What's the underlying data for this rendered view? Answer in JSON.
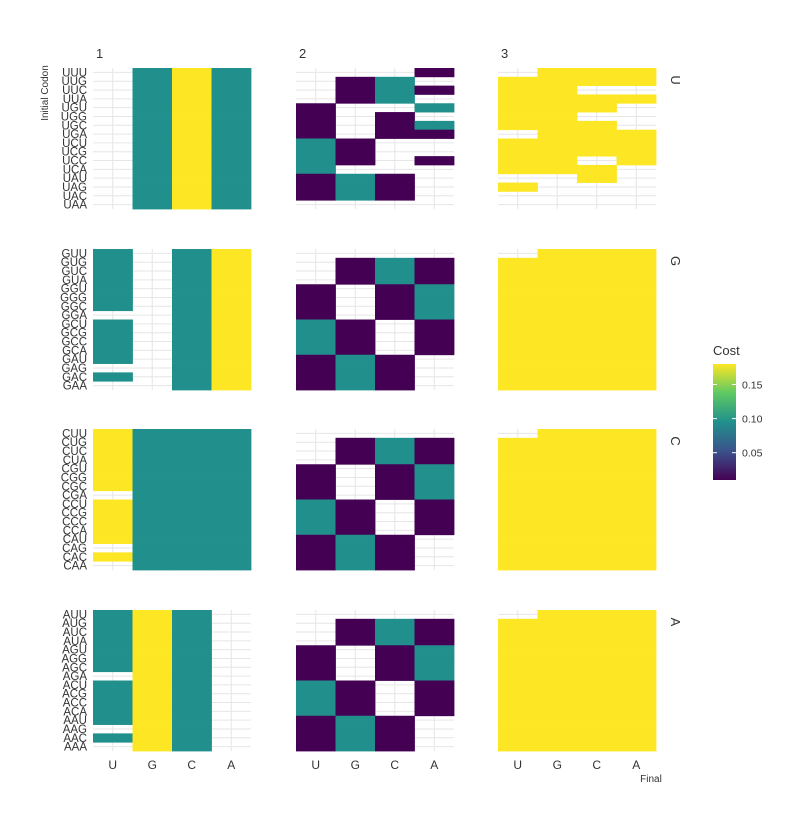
{
  "chart_data": {
    "type": "heatmap",
    "title": "",
    "xlabel": "Final",
    "ylabel": "Initial Codon",
    "x_categories": [
      "U",
      "G",
      "C",
      "A"
    ],
    "column_facets": [
      "1",
      "2",
      "3"
    ],
    "row_facets": [
      "U",
      "G",
      "C",
      "A"
    ],
    "rows": {
      "U": [
        "UUU",
        "UUG",
        "UUC",
        "UUA",
        "UGU",
        "UGG",
        "UGC",
        "UGA",
        "UCU",
        "UCG",
        "UCC",
        "UCA",
        "UAU",
        "UAG",
        "UAC",
        "UAA"
      ],
      "G": [
        "GUU",
        "GUG",
        "GUC",
        "GUA",
        "GGU",
        "GGG",
        "GGC",
        "GGA",
        "GCU",
        "GCG",
        "GCC",
        "GCA",
        "GAU",
        "GAG",
        "GAC",
        "GAA"
      ],
      "C": [
        "CUU",
        "CUG",
        "CUC",
        "CUA",
        "CGU",
        "CGG",
        "CGC",
        "CGA",
        "CCU",
        "CCG",
        "CCC",
        "CCA",
        "CAU",
        "CAG",
        "CAC",
        "CAA"
      ],
      "A": [
        "AUU",
        "AUG",
        "AUC",
        "AUA",
        "AGU",
        "AGG",
        "AGC",
        "AGA",
        "ACU",
        "ACG",
        "ACC",
        "ACA",
        "AAU",
        "AAG",
        "AAC",
        "AAA"
      ]
    },
    "colorbar": {
      "title": "Cost",
      "min": 0.01,
      "max": 0.18,
      "ticks": [
        0.05,
        0.1,
        0.15
      ],
      "tick_labels": [
        "0.05",
        "0.10",
        "0.15"
      ]
    },
    "colors": [
      "#440154",
      "#21908c",
      "#fde725"
    ],
    "legend_position": "right",
    "grid": true,
    "cells": {
      "1": {
        "U": [
          [
            null,
            1,
            2,
            1
          ],
          [
            null,
            1,
            2,
            1
          ],
          [
            null,
            1,
            2,
            1
          ],
          [
            null,
            1,
            2,
            1
          ],
          [
            null,
            1,
            2,
            1
          ],
          [
            null,
            1,
            2,
            1
          ],
          [
            null,
            1,
            2,
            1
          ],
          [
            null,
            1,
            2,
            1
          ],
          [
            null,
            1,
            2,
            1
          ],
          [
            null,
            1,
            2,
            1
          ],
          [
            null,
            1,
            2,
            1
          ],
          [
            null,
            1,
            2,
            1
          ],
          [
            null,
            1,
            2,
            1
          ],
          [
            null,
            1,
            2,
            1
          ],
          [
            null,
            1,
            2,
            1
          ],
          [
            null,
            1,
            2,
            1
          ]
        ],
        "G": [
          [
            1,
            null,
            1,
            2
          ],
          [
            1,
            null,
            1,
            2
          ],
          [
            1,
            null,
            1,
            2
          ],
          [
            1,
            null,
            1,
            2
          ],
          [
            1,
            null,
            1,
            2
          ],
          [
            1,
            null,
            1,
            2
          ],
          [
            1,
            null,
            1,
            2
          ],
          [
            null,
            null,
            1,
            2
          ],
          [
            1,
            null,
            1,
            2
          ],
          [
            1,
            null,
            1,
            2
          ],
          [
            1,
            null,
            1,
            2
          ],
          [
            1,
            null,
            1,
            2
          ],
          [
            1,
            null,
            1,
            2
          ],
          [
            null,
            null,
            1,
            2
          ],
          [
            1,
            null,
            1,
            2
          ],
          [
            null,
            null,
            1,
            2
          ]
        ],
        "C": [
          [
            2,
            1,
            1,
            1
          ],
          [
            2,
            1,
            1,
            1
          ],
          [
            2,
            1,
            1,
            1
          ],
          [
            2,
            1,
            1,
            1
          ],
          [
            2,
            1,
            1,
            1
          ],
          [
            2,
            1,
            1,
            1
          ],
          [
            2,
            1,
            1,
            1
          ],
          [
            null,
            1,
            1,
            1
          ],
          [
            2,
            1,
            1,
            1
          ],
          [
            2,
            1,
            1,
            1
          ],
          [
            2,
            1,
            1,
            1
          ],
          [
            2,
            1,
            1,
            1
          ],
          [
            2,
            1,
            1,
            1
          ],
          [
            null,
            1,
            1,
            1
          ],
          [
            2,
            1,
            1,
            1
          ],
          [
            null,
            1,
            1,
            1
          ]
        ],
        "A": [
          [
            1,
            2,
            1,
            null
          ],
          [
            1,
            2,
            1,
            null
          ],
          [
            1,
            2,
            1,
            null
          ],
          [
            1,
            2,
            1,
            null
          ],
          [
            1,
            2,
            1,
            null
          ],
          [
            1,
            2,
            1,
            null
          ],
          [
            1,
            2,
            1,
            null
          ],
          [
            null,
            2,
            1,
            null
          ],
          [
            1,
            2,
            1,
            null
          ],
          [
            1,
            2,
            1,
            null
          ],
          [
            1,
            2,
            1,
            null
          ],
          [
            1,
            2,
            1,
            null
          ],
          [
            1,
            2,
            1,
            null
          ],
          [
            null,
            2,
            1,
            null
          ],
          [
            1,
            2,
            1,
            null
          ],
          [
            null,
            2,
            1,
            null
          ]
        ]
      },
      "2": {
        "U": [
          [
            null,
            null,
            null,
            0
          ],
          [
            null,
            0,
            1,
            null
          ],
          [
            null,
            0,
            1,
            0
          ],
          [
            null,
            0,
            1,
            null
          ],
          [
            0,
            null,
            null,
            1
          ],
          [
            0,
            null,
            0,
            null
          ],
          [
            0,
            null,
            0,
            1
          ],
          [
            0,
            null,
            0,
            0
          ],
          [
            1,
            0,
            null,
            null
          ],
          [
            1,
            0,
            null,
            null
          ],
          [
            1,
            0,
            null,
            0
          ],
          [
            1,
            null,
            null,
            null
          ],
          [
            0,
            1,
            0,
            null
          ],
          [
            0,
            1,
            0,
            null
          ],
          [
            0,
            1,
            0,
            null
          ],
          [
            null,
            null,
            null,
            null
          ]
        ],
        "G": [
          [
            null,
            null,
            null,
            null
          ],
          [
            null,
            0,
            1,
            0
          ],
          [
            null,
            0,
            1,
            0
          ],
          [
            null,
            0,
            1,
            0
          ],
          [
            0,
            null,
            0,
            1
          ],
          [
            0,
            null,
            0,
            1
          ],
          [
            0,
            null,
            0,
            1
          ],
          [
            0,
            null,
            0,
            1
          ],
          [
            1,
            0,
            null,
            0
          ],
          [
            1,
            0,
            null,
            0
          ],
          [
            1,
            0,
            null,
            0
          ],
          [
            1,
            0,
            null,
            0
          ],
          [
            0,
            1,
            0,
            null
          ],
          [
            0,
            1,
            0,
            null
          ],
          [
            0,
            1,
            0,
            null
          ],
          [
            0,
            1,
            0,
            null
          ]
        ],
        "C": [
          [
            null,
            null,
            null,
            null
          ],
          [
            null,
            0,
            1,
            0
          ],
          [
            null,
            0,
            1,
            0
          ],
          [
            null,
            0,
            1,
            0
          ],
          [
            0,
            null,
            0,
            1
          ],
          [
            0,
            null,
            0,
            1
          ],
          [
            0,
            null,
            0,
            1
          ],
          [
            0,
            null,
            0,
            1
          ],
          [
            1,
            0,
            null,
            0
          ],
          [
            1,
            0,
            null,
            0
          ],
          [
            1,
            0,
            null,
            0
          ],
          [
            1,
            0,
            null,
            0
          ],
          [
            0,
            1,
            0,
            null
          ],
          [
            0,
            1,
            0,
            null
          ],
          [
            0,
            1,
            0,
            null
          ],
          [
            0,
            1,
            0,
            null
          ]
        ],
        "A": [
          [
            null,
            null,
            null,
            null
          ],
          [
            null,
            0,
            1,
            0
          ],
          [
            null,
            0,
            1,
            0
          ],
          [
            null,
            0,
            1,
            0
          ],
          [
            0,
            null,
            0,
            1
          ],
          [
            0,
            null,
            0,
            1
          ],
          [
            0,
            null,
            0,
            1
          ],
          [
            0,
            null,
            0,
            1
          ],
          [
            1,
            0,
            null,
            0
          ],
          [
            1,
            0,
            null,
            0
          ],
          [
            1,
            0,
            null,
            0
          ],
          [
            1,
            0,
            null,
            0
          ],
          [
            0,
            1,
            0,
            null
          ],
          [
            0,
            1,
            0,
            null
          ],
          [
            0,
            1,
            0,
            null
          ],
          [
            0,
            1,
            0,
            null
          ]
        ]
      },
      "3": {
        "U": [
          [
            null,
            2,
            2,
            2
          ],
          [
            2,
            2,
            2,
            2
          ],
          [
            2,
            2,
            null,
            null
          ],
          [
            2,
            2,
            2,
            2
          ],
          [
            2,
            2,
            2,
            null
          ],
          [
            2,
            2,
            null,
            null
          ],
          [
            2,
            2,
            2,
            null
          ],
          [
            null,
            2,
            2,
            2
          ],
          [
            2,
            2,
            2,
            2
          ],
          [
            2,
            2,
            2,
            2
          ],
          [
            2,
            2,
            null,
            2
          ],
          [
            2,
            2,
            2,
            null
          ],
          [
            null,
            null,
            2,
            null
          ],
          [
            2,
            null,
            null,
            null
          ],
          [
            null,
            null,
            null,
            null
          ],
          [
            null,
            null,
            null,
            null
          ]
        ],
        "G": [
          [
            null,
            2,
            2,
            2
          ],
          [
            2,
            2,
            2,
            2
          ],
          [
            2,
            2,
            2,
            2
          ],
          [
            2,
            2,
            2,
            2
          ],
          [
            2,
            2,
            2,
            2
          ],
          [
            2,
            2,
            2,
            2
          ],
          [
            2,
            2,
            2,
            2
          ],
          [
            2,
            2,
            2,
            2
          ],
          [
            2,
            2,
            2,
            2
          ],
          [
            2,
            2,
            2,
            2
          ],
          [
            2,
            2,
            2,
            2
          ],
          [
            2,
            2,
            2,
            2
          ],
          [
            2,
            2,
            2,
            2
          ],
          [
            2,
            2,
            2,
            2
          ],
          [
            2,
            2,
            2,
            2
          ],
          [
            2,
            2,
            2,
            2
          ]
        ],
        "C": [
          [
            null,
            2,
            2,
            2
          ],
          [
            2,
            2,
            2,
            2
          ],
          [
            2,
            2,
            2,
            2
          ],
          [
            2,
            2,
            2,
            2
          ],
          [
            2,
            2,
            2,
            2
          ],
          [
            2,
            2,
            2,
            2
          ],
          [
            2,
            2,
            2,
            2
          ],
          [
            2,
            2,
            2,
            2
          ],
          [
            2,
            2,
            2,
            2
          ],
          [
            2,
            2,
            2,
            2
          ],
          [
            2,
            2,
            2,
            2
          ],
          [
            2,
            2,
            2,
            2
          ],
          [
            2,
            2,
            2,
            2
          ],
          [
            2,
            2,
            2,
            2
          ],
          [
            2,
            2,
            2,
            2
          ],
          [
            2,
            2,
            2,
            2
          ]
        ],
        "A": [
          [
            null,
            2,
            2,
            2
          ],
          [
            2,
            2,
            2,
            2
          ],
          [
            2,
            2,
            2,
            2
          ],
          [
            2,
            2,
            2,
            2
          ],
          [
            2,
            2,
            2,
            2
          ],
          [
            2,
            2,
            2,
            2
          ],
          [
            2,
            2,
            2,
            2
          ],
          [
            2,
            2,
            2,
            2
          ],
          [
            2,
            2,
            2,
            2
          ],
          [
            2,
            2,
            2,
            2
          ],
          [
            2,
            2,
            2,
            2
          ],
          [
            2,
            2,
            2,
            2
          ],
          [
            2,
            2,
            2,
            2
          ],
          [
            2,
            2,
            2,
            2
          ],
          [
            2,
            2,
            2,
            2
          ],
          [
            2,
            2,
            2,
            2
          ]
        ]
      }
    }
  }
}
